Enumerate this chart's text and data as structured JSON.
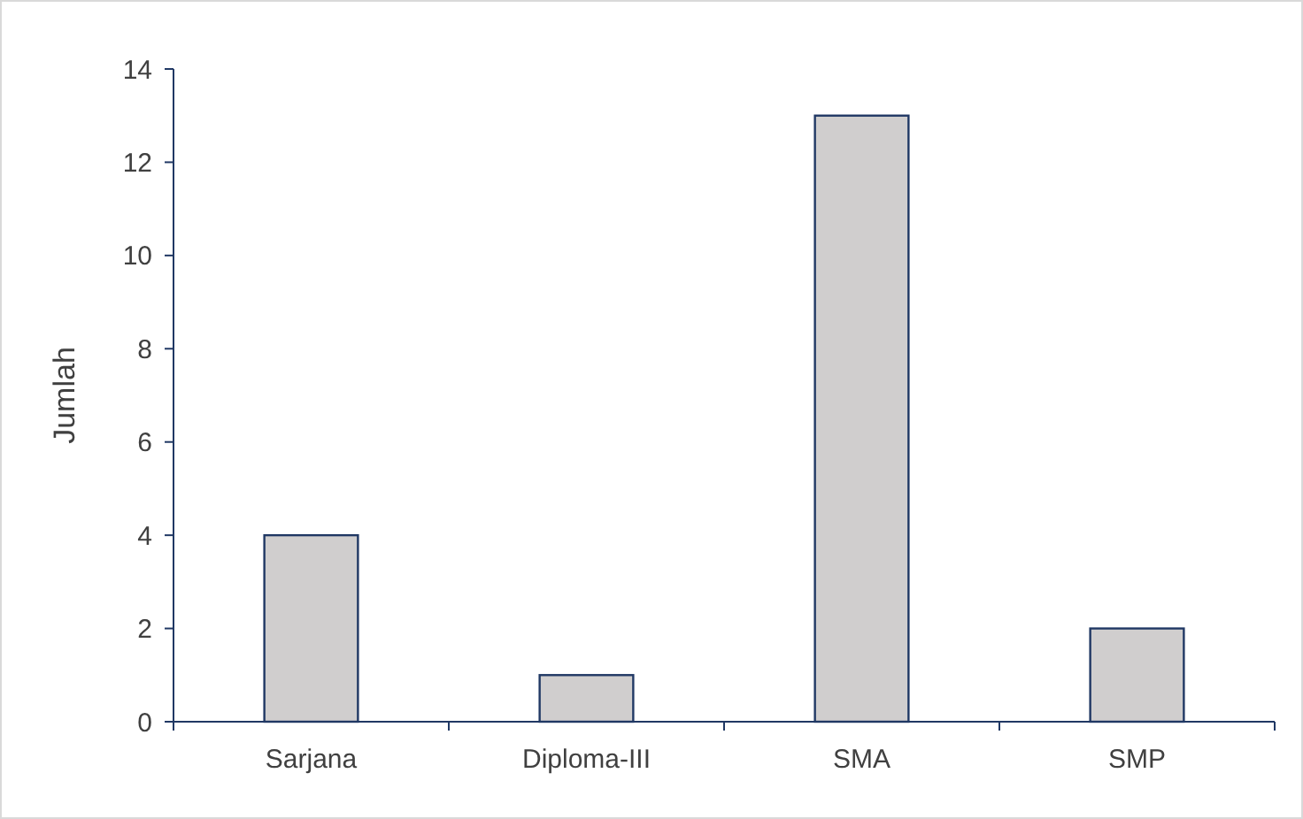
{
  "chart_data": {
    "type": "bar",
    "ylabel": "Jumlah",
    "categories": [
      "Sarjana",
      "Diploma-III",
      "SMA",
      "SMP"
    ],
    "values": [
      4,
      1,
      13,
      2
    ],
    "color": "#d0cece",
    "ylim": [
      0,
      14
    ],
    "yticks": [
      0,
      2,
      4,
      6,
      8,
      10,
      12,
      14
    ],
    "grid": false
  }
}
